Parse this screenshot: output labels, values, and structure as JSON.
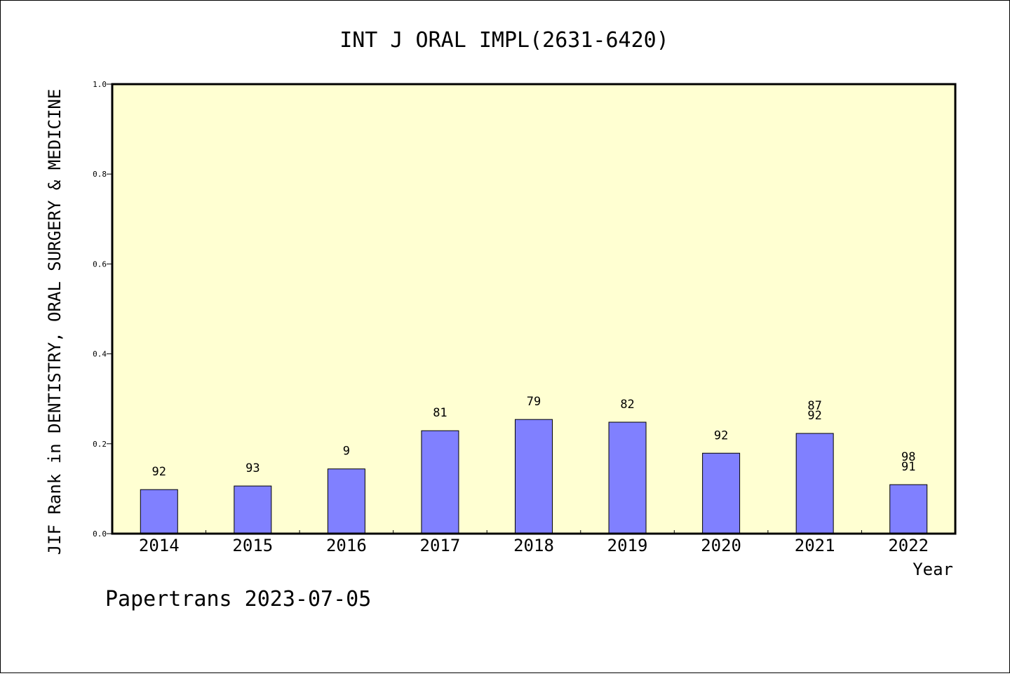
{
  "chart_data": {
    "type": "bar",
    "title": "INT J ORAL IMPL(2631-6420)",
    "xlabel": "Year",
    "ylabel": "JIF Rank in DENTISTRY, ORAL SURGERY & MEDICINE",
    "footer": "Papertrans 2023-07-05",
    "categories": [
      "2014",
      "2015",
      "2016",
      "2017",
      "2018",
      "2019",
      "2020",
      "2021",
      "2022"
    ],
    "values": [
      0.098,
      0.106,
      0.144,
      0.229,
      0.254,
      0.248,
      0.179,
      0.223,
      0.109
    ],
    "labels": [
      [
        "92"
      ],
      [
        "93"
      ],
      [
        "9"
      ],
      [
        "81"
      ],
      [
        "79"
      ],
      [
        "82"
      ],
      [
        "92"
      ],
      [
        "87",
        "92"
      ],
      [
        "98",
        "91"
      ]
    ],
    "ylim": [
      0,
      1.0
    ],
    "yticks": [
      "0.0",
      "0.2",
      "0.4",
      "0.6",
      "0.8",
      "1.0"
    ],
    "colors": {
      "plot_bg": "#ffffd2",
      "bar": "#8080ff",
      "axis": "#000000"
    },
    "grid": false,
    "legend": "none"
  }
}
